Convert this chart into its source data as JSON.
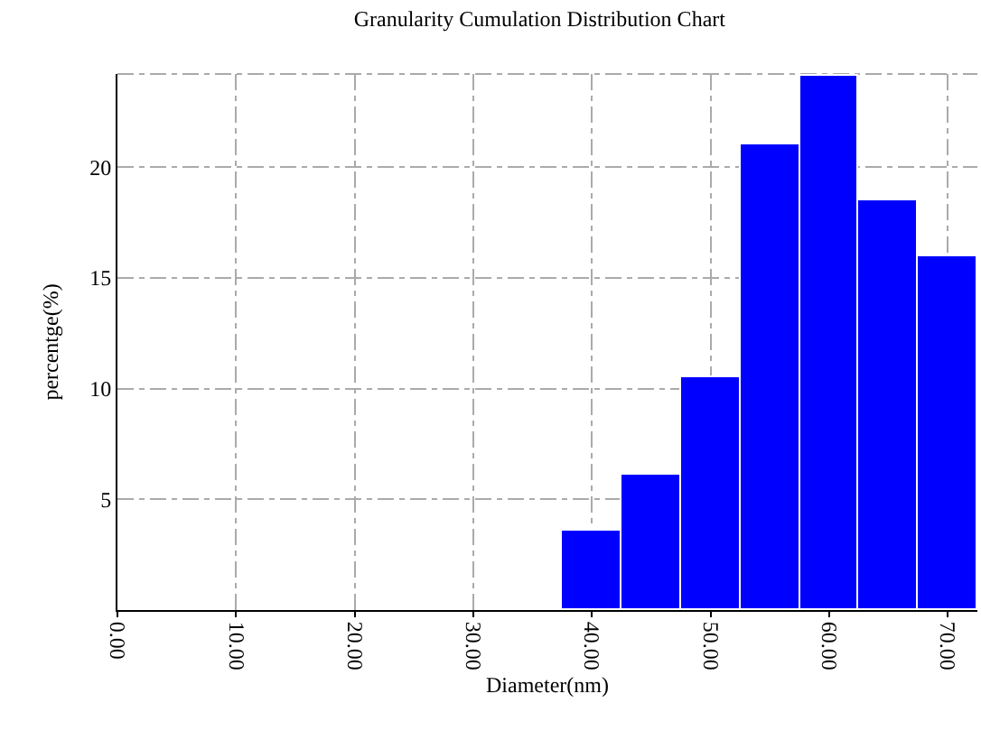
{
  "chart_data": {
    "type": "histogram",
    "title": "Granularity Cumulation Distribution Chart",
    "xlabel": "Diameter(nm)",
    "ylabel": "percentge(%)",
    "bins": [
      37.5,
      42.5,
      47.5,
      52.5,
      57.5,
      62.5,
      67.5,
      72.5
    ],
    "values": [
      3.6,
      6.1,
      10.5,
      21.0,
      24.1,
      18.5,
      16.0
    ],
    "color": "#0000ff",
    "xlim": [
      0,
      72.5
    ],
    "ylim": [
      0,
      24.2
    ],
    "xticks": [
      {
        "value": 0,
        "label": "0.00"
      },
      {
        "value": 10,
        "label": "10.00"
      },
      {
        "value": 20,
        "label": "20.00"
      },
      {
        "value": 30,
        "label": "30.00"
      },
      {
        "value": 40,
        "label": "40.00"
      },
      {
        "value": 50,
        "label": "50.00"
      },
      {
        "value": 60,
        "label": "60.00"
      },
      {
        "value": 70,
        "label": "70.00"
      }
    ],
    "yticks": [
      5,
      10,
      15,
      20
    ],
    "grid": true
  }
}
